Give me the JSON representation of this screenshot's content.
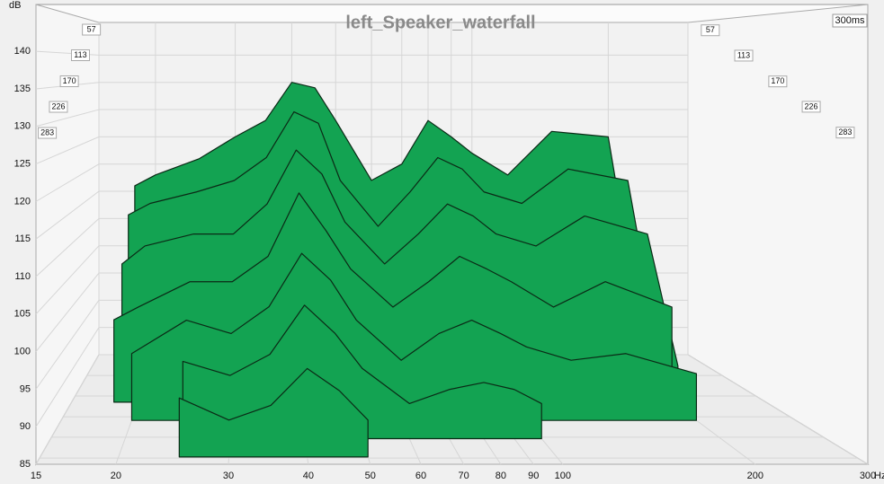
{
  "chart_data": {
    "type": "waterfall",
    "title": "left_Speaker_waterfall",
    "y_label": "dB",
    "x_label": "Hz",
    "time_label": "300ms",
    "log_x": true,
    "grid": true,
    "color": "#13a352",
    "line_color": "#0b2a16",
    "xlim": [
      15,
      300
    ],
    "xticks": [
      15,
      20,
      30,
      40,
      50,
      60,
      70,
      80,
      90,
      100,
      200,
      300
    ],
    "ylim": [
      85,
      146
    ],
    "yticks": [
      85,
      90,
      95,
      100,
      105,
      110,
      115,
      120,
      125,
      130,
      135,
      140
    ],
    "zlim": [
      0,
      300
    ],
    "zticks": [
      57,
      113,
      170,
      226,
      283
    ],
    "x": [
      18,
      20,
      25,
      30,
      35,
      40,
      45,
      50,
      60,
      70,
      80,
      90,
      100,
      120,
      150,
      200,
      230
    ],
    "series": [
      {
        "time_ms": 0,
        "values": [
          116,
          118,
          121,
          125,
          128,
          135,
          134,
          128,
          117,
          120,
          128,
          125,
          122,
          118,
          126,
          125,
          95
        ]
      },
      {
        "time_ms": 40,
        "values": [
          112,
          114,
          116,
          118,
          122,
          130,
          128,
          118,
          110,
          116,
          122,
          120,
          116,
          114,
          120,
          118,
          90
        ]
      },
      {
        "time_ms": 80,
        "values": [
          105,
          108,
          110,
          110,
          115,
          124,
          120,
          112,
          105,
          110,
          115,
          113,
          110,
          108,
          113,
          110,
          88
        ]
      },
      {
        "time_ms": 130,
        "values": [
          98,
          100,
          104,
          104,
          108,
          118,
          112,
          106,
          100,
          104,
          108,
          106,
          104,
          100,
          104,
          100,
          null
        ]
      },
      {
        "time_ms": 180,
        "values": [
          null,
          95,
          100,
          98,
          102,
          110,
          106,
          100,
          94,
          98,
          100,
          98,
          96,
          94,
          95,
          92,
          null
        ]
      },
      {
        "time_ms": 230,
        "values": [
          null,
          null,
          96,
          94,
          97,
          104,
          100,
          95,
          90,
          92,
          93,
          92,
          90,
          null,
          null,
          null,
          null
        ]
      },
      {
        "time_ms": 280,
        "values": [
          null,
          null,
          93,
          90,
          92,
          97,
          94,
          90,
          null,
          null,
          null,
          null,
          null,
          null,
          null,
          null,
          null
        ]
      }
    ]
  }
}
